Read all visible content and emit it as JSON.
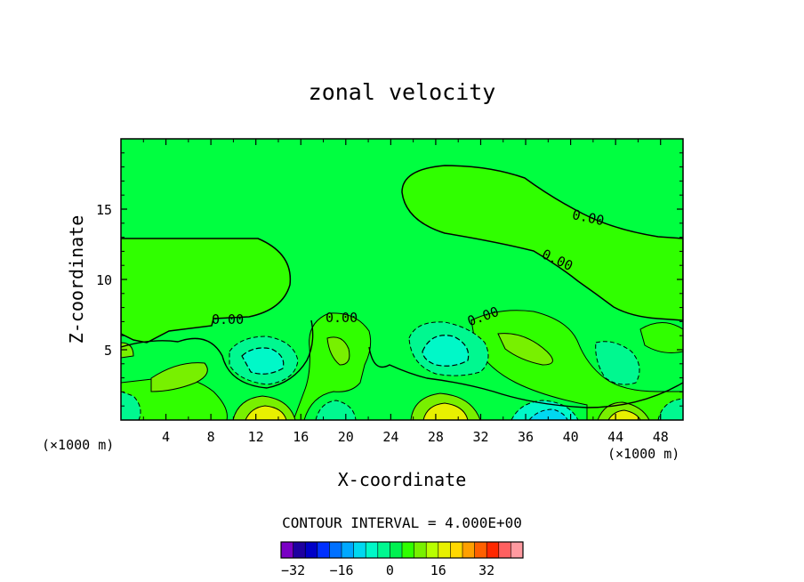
{
  "chart_data": {
    "type": "contour",
    "title": "zonal velocity",
    "xlabel": "X-coordinate",
    "ylabel": "Z-coordinate",
    "x_units": "(×1000 m)",
    "x_units_right": "(×1000 m)",
    "xlim": [
      0,
      50
    ],
    "ylim": [
      0,
      20
    ],
    "x_ticks": [
      4,
      8,
      12,
      16,
      20,
      24,
      28,
      32,
      36,
      40,
      44,
      48
    ],
    "y_ticks": [
      5,
      10,
      15
    ],
    "x_tick_labels": [
      "4",
      "8",
      "12",
      "16",
      "20",
      "24",
      "28",
      "32",
      "36",
      "40",
      "44",
      "48"
    ],
    "y_tick_labels": [
      "5",
      "10",
      "15"
    ],
    "contour_interval_text": "CONTOUR INTERVAL = 4.000E+00",
    "contour_labels": [
      "0.00",
      "0.00",
      "0.00",
      "0.00",
      "0.00"
    ],
    "colorbar": {
      "levels": [
        -36,
        -32,
        -28,
        -24,
        -20,
        -16,
        -12,
        -8,
        -4,
        0,
        4,
        8,
        12,
        16,
        20,
        24,
        28,
        32,
        36,
        40
      ],
      "tick_values": [
        -32,
        -16,
        0,
        16,
        32
      ],
      "tick_labels": [
        "−32",
        "−16",
        "0",
        "16",
        "32"
      ],
      "colors": [
        "#7a00c4",
        "#1e00a0",
        "#0000c8",
        "#0030ff",
        "#0070ff",
        "#00a8ff",
        "#00d8f0",
        "#00f8c8",
        "#00f890",
        "#00f050",
        "#30ff00",
        "#78f000",
        "#b8ff00",
        "#e8f000",
        "#ffd800",
        "#ffa000",
        "#ff6000",
        "#ff2800",
        "#ff6060",
        "#ff9aa0"
      ]
    },
    "background_color": "#00ff40",
    "grid": false
  }
}
